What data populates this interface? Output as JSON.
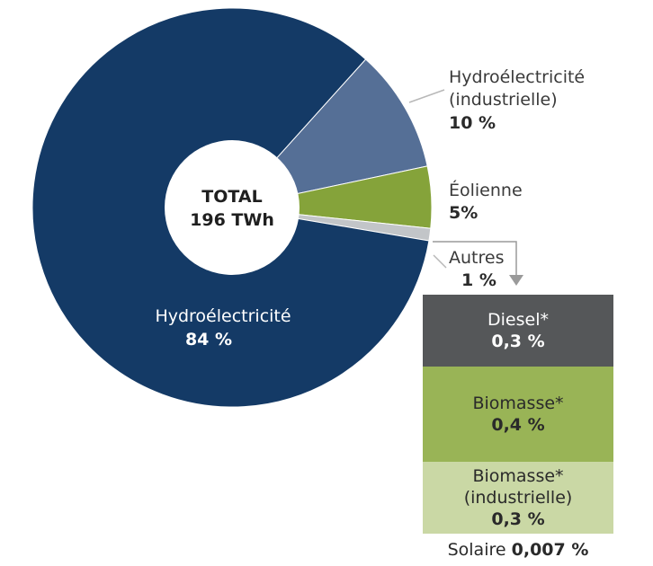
{
  "chart_data": {
    "type": "pie",
    "center_label": {
      "line1": "TOTAL",
      "line2": "196 TWh"
    },
    "slices": [
      {
        "name": "Hydroélectricité",
        "percent_label": "84 %",
        "value": 84,
        "color": "#143a66"
      },
      {
        "name": "Hydroélectricité (industrielle)",
        "name_lines": [
          "Hydroélectricité",
          "(industrielle)"
        ],
        "percent_label": "10 %",
        "value": 10,
        "color": "#556f96"
      },
      {
        "name": "Éolienne",
        "percent_label": "5%",
        "value": 5,
        "color": "#85a33a"
      },
      {
        "name": "Autres",
        "percent_label": "1 %",
        "value": 1,
        "color": "#c2c5c8"
      }
    ],
    "autres_breakdown": [
      {
        "name": "Diesel*",
        "percent_label": "0,3 %",
        "value": 0.3,
        "color": "#555759"
      },
      {
        "name": "Biomasse*",
        "percent_label": "0,4 %",
        "value": 0.4,
        "color": "#99b456"
      },
      {
        "name": "Biomasse* (industrielle)",
        "name_lines": [
          "Biomasse*",
          "(industrielle)"
        ],
        "percent_label": "0,3 %",
        "value": 0.3,
        "color": "#cad8a5"
      }
    ],
    "footnote": {
      "name": "Solaire",
      "percent_label": "0,007 %",
      "value": 0.007
    }
  }
}
